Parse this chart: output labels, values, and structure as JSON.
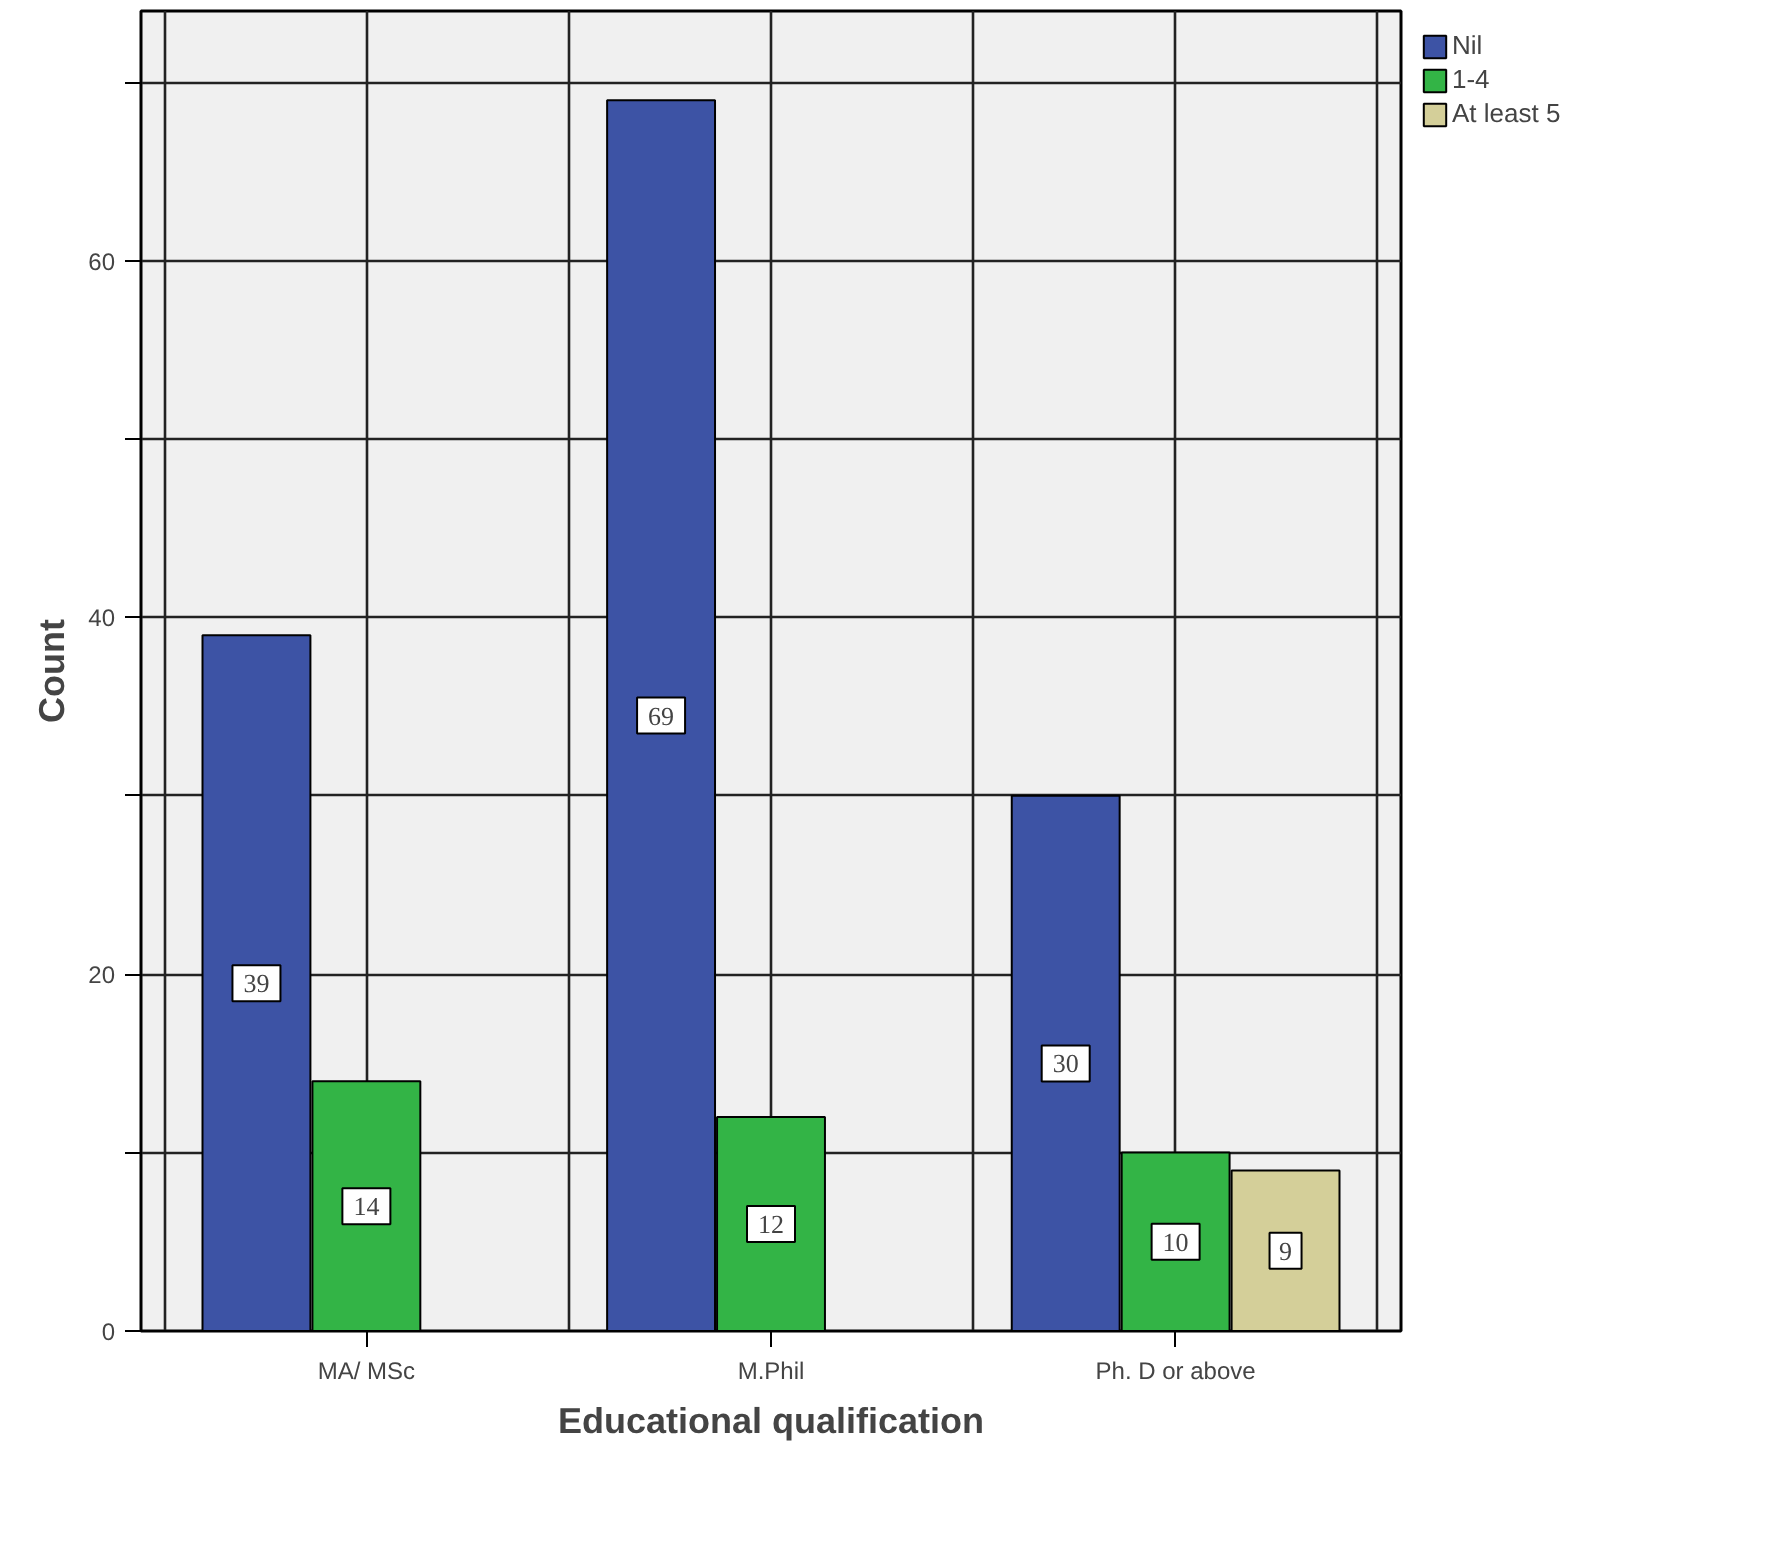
{
  "chart_data": {
    "type": "bar",
    "xlabel": "Educational qualification",
    "ylabel": "Count",
    "categories": [
      "MA/ MSc",
      "M.Phil",
      "Ph. D or above"
    ],
    "series": [
      {
        "name": "Nil",
        "color": "#3d53a5",
        "values": [
          39,
          69,
          30
        ]
      },
      {
        "name": "1-4",
        "color": "#33b446",
        "values": [
          14,
          12,
          10
        ]
      },
      {
        "name": "At least 5",
        "color": "#d4cf99",
        "values": [
          null,
          null,
          9
        ]
      }
    ],
    "ylim": [
      0,
      74
    ],
    "yticks": [
      0,
      {
        "value": 10,
        "label": null
      },
      20,
      {
        "value": 30,
        "label": null
      },
      40,
      {
        "value": 50,
        "label": null
      },
      60,
      {
        "value": 70,
        "label": null
      }
    ],
    "grid": true,
    "legend": "top right",
    "data_labels": true
  }
}
